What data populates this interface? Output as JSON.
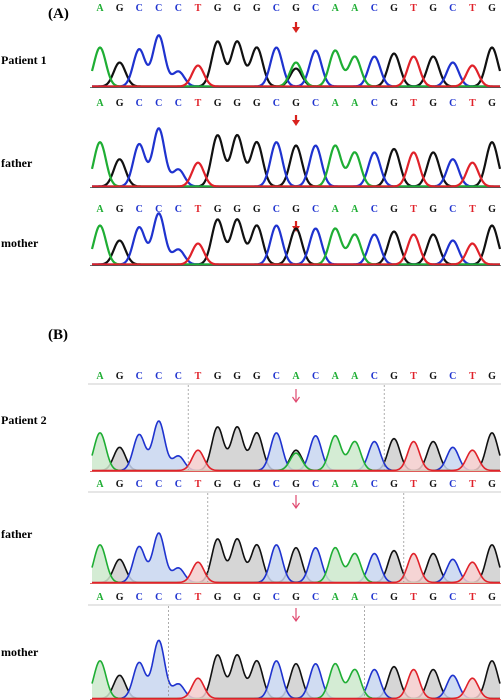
{
  "figure": {
    "panels": [
      {
        "label": "(A)",
        "style": "plain",
        "tracks": [
          {
            "name": "Patient 1",
            "sequence": [
              "A",
              "G",
              "C",
              "C",
              "C",
              "T",
              "G",
              "G",
              "G",
              "C",
              "G",
              "C",
              "A",
              "A",
              "C",
              "G",
              "T",
              "G",
              "C",
              "T",
              "G"
            ],
            "arrow_at_index": 10,
            "secondary_peak": {
              "index": 10,
              "base": "A",
              "level": 0.4
            }
          },
          {
            "name": "father",
            "sequence": [
              "A",
              "G",
              "C",
              "C",
              "C",
              "T",
              "G",
              "G",
              "G",
              "C",
              "G",
              "C",
              "A",
              "A",
              "C",
              "G",
              "T",
              "G",
              "C",
              "T",
              "G"
            ],
            "arrow_at_index": 10
          },
          {
            "name": "mother",
            "sequence": [
              "A",
              "G",
              "C",
              "C",
              "C",
              "T",
              "G",
              "G",
              "G",
              "C",
              "G",
              "C",
              "A",
              "A",
              "C",
              "G",
              "T",
              "G",
              "C",
              "T",
              "G"
            ],
            "arrow_at_index": 10
          }
        ]
      },
      {
        "label": "(B)",
        "style": "shaded",
        "tracks": [
          {
            "name": "Patient 2",
            "sequence": [
              "A",
              "G",
              "C",
              "C",
              "C",
              "T",
              "G",
              "G",
              "G",
              "C",
              "A",
              "C",
              "A",
              "A",
              "C",
              "G",
              "T",
              "G",
              "C",
              "T",
              "G"
            ],
            "arrow_at_index": 10,
            "secondary_peak": {
              "index": 10,
              "base": "G",
              "level": 0.35
            }
          },
          {
            "name": "father",
            "sequence": [
              "A",
              "G",
              "C",
              "C",
              "C",
              "T",
              "G",
              "G",
              "G",
              "C",
              "G",
              "C",
              "A",
              "A",
              "C",
              "G",
              "T",
              "G",
              "C",
              "T",
              "G"
            ],
            "arrow_at_index": 10
          },
          {
            "name": "mother",
            "sequence": [
              "A",
              "G",
              "C",
              "C",
              "C",
              "T",
              "G",
              "G",
              "G",
              "C",
              "G",
              "C",
              "A",
              "A",
              "C",
              "G",
              "T",
              "G",
              "C",
              "T",
              "G"
            ],
            "arrow_at_index": 10
          }
        ]
      }
    ],
    "base_colors": {
      "A": "#1fae34",
      "C": "#1f33cf",
      "G": "#111111",
      "T": "#e0222a"
    },
    "fill_colors": {
      "A": "#cde9cd",
      "C": "#c8d6f0",
      "G": "#cfcfcf",
      "T": "#f3cccc"
    },
    "arrow_colors": {
      "plain": "#d8221e",
      "shaded": "#e04a70"
    },
    "peak_levels": [
      0.65,
      0.4,
      0.62,
      0.85,
      0.25,
      0.35,
      0.75,
      0.75,
      0.65,
      0.65,
      0.6,
      0.6,
      0.6,
      0.5,
      0.5,
      0.55,
      0.5,
      0.5,
      0.4,
      0.35,
      0.65
    ]
  }
}
